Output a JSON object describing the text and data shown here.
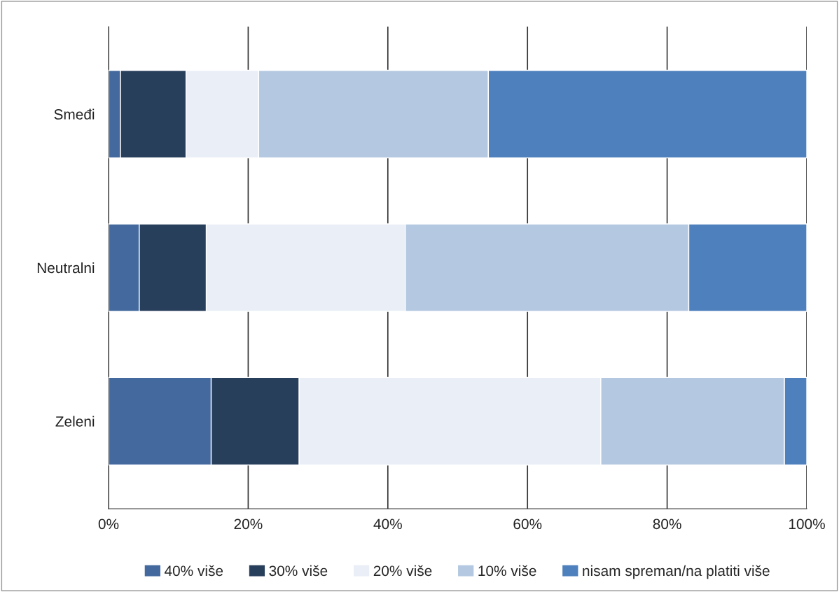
{
  "chart_data": {
    "type": "bar",
    "orientation": "horizontal",
    "stacked": true,
    "categories": [
      "Smeđi",
      "Neutralni",
      "Zeleni"
    ],
    "series": [
      {
        "name": "40% više",
        "color": "#43699e",
        "values": [
          1.7,
          4.4,
          14.7
        ]
      },
      {
        "name": "30% više",
        "color": "#283f5c",
        "values": [
          9.4,
          9.6,
          12.6
        ]
      },
      {
        "name": "20% više",
        "color": "#e9eef7",
        "values": [
          10.4,
          28.5,
          43.2
        ]
      },
      {
        "name": "10% više",
        "color": "#b4c9e1",
        "values": [
          32.9,
          40.6,
          26.3
        ]
      },
      {
        "name": "nisam spreman/na platiti više",
        "color": "#4e80bd",
        "values": [
          45.6,
          16.9,
          3.2
        ]
      }
    ],
    "xlim": [
      0,
      100
    ],
    "xticks": [
      {
        "value": 0,
        "label": "0%"
      },
      {
        "value": 20,
        "label": "20%"
      },
      {
        "value": 40,
        "label": "40%"
      },
      {
        "value": 60,
        "label": "60%"
      },
      {
        "value": 80,
        "label": "80%"
      },
      {
        "value": 100,
        "label": "100%"
      }
    ],
    "grid": "x",
    "legend": "bottom"
  }
}
